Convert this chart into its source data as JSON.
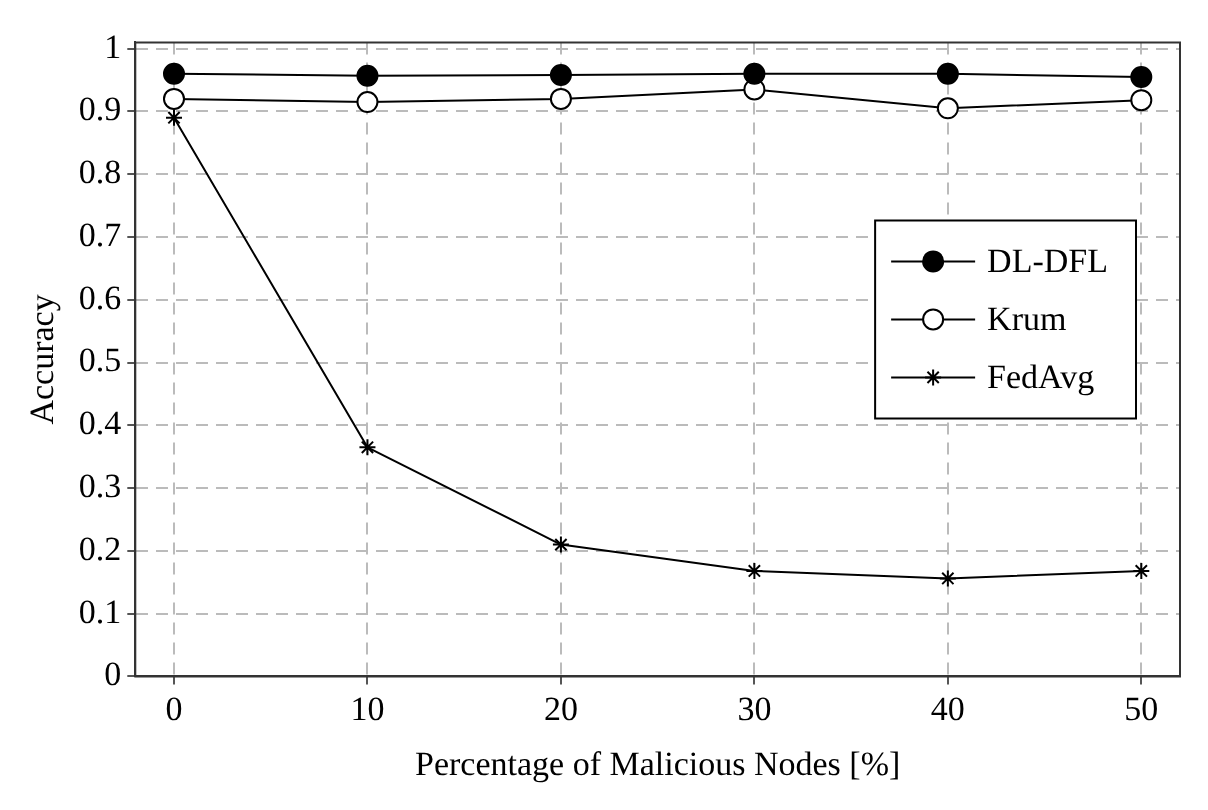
{
  "chart_data": {
    "type": "line",
    "xlabel": "Percentage of Malicious Nodes [%]",
    "ylabel": "Accuracy",
    "x": [
      0,
      10,
      20,
      30,
      40,
      50
    ],
    "xlim": [
      -2,
      52
    ],
    "xticks": [
      0,
      10,
      20,
      30,
      40,
      50
    ],
    "ylim": [
      0,
      1.01
    ],
    "yticks": [
      0,
      0.1,
      0.2,
      0.3,
      0.4,
      0.5,
      0.6,
      0.7,
      0.8,
      0.9,
      1
    ],
    "grid": true,
    "legend": "right",
    "line_style": "solid",
    "series": [
      {
        "name": "DL-DFL",
        "color": "#000000",
        "marker": "circle",
        "values": [
          0.96,
          0.957,
          0.958,
          0.96,
          0.96,
          0.955
        ]
      },
      {
        "name": "Krum",
        "color": "#000000",
        "marker": "open-circle",
        "values": [
          0.92,
          0.915,
          0.92,
          0.935,
          0.905,
          0.918
        ]
      },
      {
        "name": "FedAvg",
        "color": "#000000",
        "marker": "cross",
        "values": [
          0.89,
          0.365,
          0.21,
          0.168,
          0.156,
          0.168
        ]
      }
    ]
  }
}
